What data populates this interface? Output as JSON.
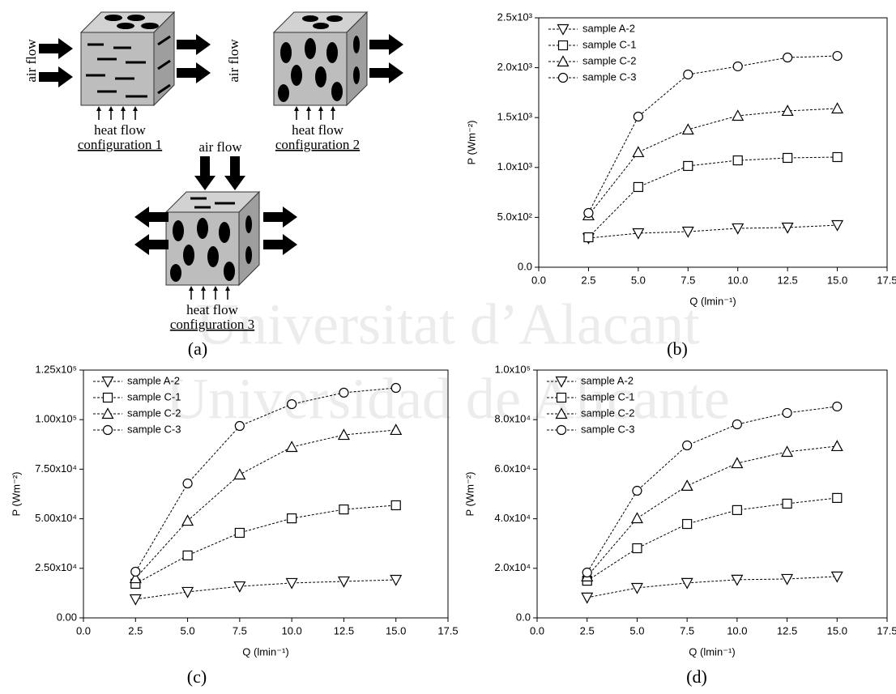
{
  "watermark": [
    "Universitat d’Alacant",
    "Universidad de Alicante"
  ],
  "diagram": {
    "caption": "(a)",
    "panels": [
      {
        "air_flow": "air flow",
        "heat_flow": "heat flow",
        "configuration": "configuration 1"
      },
      {
        "air_flow": "air flow",
        "heat_flow": "heat flow",
        "configuration": "configuration 2"
      },
      {
        "air_flow": "air flow",
        "heat_flow": "heat flow",
        "configuration": "configuration 3"
      }
    ]
  },
  "chart_data": [
    {
      "type": "line",
      "caption": "(b)",
      "x_label": "Q (lmin⁻¹)",
      "y_label": "P (Wm⁻²)",
      "x": [
        2.5,
        5,
        7.5,
        10,
        12.5,
        15
      ],
      "xlim": [
        0,
        17.5
      ],
      "xticks": [
        {
          "value": 0,
          "label": "0.0"
        },
        2.5,
        {
          "value": 5,
          "label": "5.0"
        },
        7.5,
        {
          "value": 10,
          "label": "10.0"
        },
        12.5,
        {
          "value": 15,
          "label": "15.0"
        },
        17.5
      ],
      "ylim": [
        0,
        2500
      ],
      "yticks": [
        {
          "value": 0,
          "label": "0.0"
        },
        {
          "value": 500,
          "label": "5.0x10²"
        },
        {
          "value": 1000,
          "label": "1.0x10³"
        },
        {
          "value": 1500,
          "label": "1.5x10³"
        },
        {
          "value": 2000,
          "label": "2.0x10³"
        },
        {
          "value": 2500,
          "label": "2.5x10³"
        }
      ],
      "legend": "upper-left",
      "series": [
        {
          "name": "sample A-2",
          "marker": "down-triangle",
          "color": "#000000",
          "values": [
            292,
            341,
            357,
            390,
            398,
            422
          ]
        },
        {
          "name": "sample C-1",
          "marker": "square",
          "color": "#000000",
          "values": [
            300,
            804,
            1015,
            1071,
            1096,
            1104
          ]
        },
        {
          "name": "sample C-2",
          "marker": "triangle",
          "color": "#000000",
          "values": [
            520,
            1153,
            1380,
            1518,
            1567,
            1591
          ]
        },
        {
          "name": "sample C-3",
          "marker": "circle",
          "color": "#000000",
          "values": [
            544,
            1510,
            1932,
            2013,
            2102,
            2118
          ]
        }
      ]
    },
    {
      "type": "line",
      "caption": "(c)",
      "x_label": "Q (lmin⁻¹)",
      "y_label": "P (Wm⁻²)",
      "x": [
        2.5,
        5,
        7.5,
        10,
        12.5,
        15
      ],
      "xlim": [
        0,
        17.5
      ],
      "xticks": [
        {
          "value": 0,
          "label": "0.0"
        },
        2.5,
        {
          "value": 5,
          "label": "5.0"
        },
        7.5,
        {
          "value": 10,
          "label": "10.0"
        },
        12.5,
        {
          "value": 15,
          "label": "15.0"
        },
        17.5
      ],
      "ylim": [
        0,
        125000
      ],
      "yticks": [
        {
          "value": 0,
          "label": "0.00"
        },
        {
          "value": 25000,
          "label": "2.50x10⁴"
        },
        {
          "value": 50000,
          "label": "5.00x10⁴"
        },
        {
          "value": 75000,
          "label": "7.50x10⁴"
        },
        {
          "value": 100000,
          "label": "1.00x10⁵"
        },
        {
          "value": 125000,
          "label": "1.25x10⁵"
        }
      ],
      "legend": "upper-left",
      "series": [
        {
          "name": "sample A-2",
          "marker": "down-triangle",
          "color": "#000000",
          "values": [
            9400,
            13100,
            15900,
            17600,
            18400,
            19200
          ]
        },
        {
          "name": "sample C-1",
          "marker": "square",
          "color": "#000000",
          "values": [
            17200,
            31500,
            42900,
            50200,
            54700,
            56800
          ]
        },
        {
          "name": "sample C-2",
          "marker": "triangle",
          "color": "#000000",
          "values": [
            20000,
            49000,
            72300,
            86200,
            92300,
            94800
          ]
        },
        {
          "name": "sample C-3",
          "marker": "circle",
          "color": "#000000",
          "values": [
            23300,
            67800,
            96800,
            107800,
            113600,
            116000
          ]
        }
      ]
    },
    {
      "type": "line",
      "caption": "(d)",
      "x_label": "Q (lmin⁻¹)",
      "y_label": "P (Wm⁻²)",
      "x": [
        2.5,
        5,
        7.5,
        10,
        12.5,
        15
      ],
      "xlim": [
        0,
        17.5
      ],
      "xticks": [
        {
          "value": 0,
          "label": "0.0"
        },
        2.5,
        {
          "value": 5,
          "label": "5.0"
        },
        7.5,
        {
          "value": 10,
          "label": "10.0"
        },
        12.5,
        {
          "value": 15,
          "label": "15.0"
        },
        17.5
      ],
      "ylim": [
        0,
        100000
      ],
      "yticks": [
        {
          "value": 0,
          "label": "0.0"
        },
        {
          "value": 20000,
          "label": "2.0x10⁴"
        },
        {
          "value": 40000,
          "label": "4.0x10⁴"
        },
        {
          "value": 60000,
          "label": "6.0x10⁴"
        },
        {
          "value": 80000,
          "label": "8.0x10⁴"
        },
        {
          "value": 100000,
          "label": "1.0x10⁵"
        }
      ],
      "legend": "upper-left",
      "series": [
        {
          "name": "sample A-2",
          "marker": "down-triangle",
          "color": "#000000",
          "values": [
            8200,
            12100,
            14100,
            15400,
            15700,
            16700
          ]
        },
        {
          "name": "sample C-1",
          "marker": "square",
          "color": "#000000",
          "values": [
            15000,
            28100,
            37900,
            43500,
            46100,
            48400
          ]
        },
        {
          "name": "sample C-2",
          "marker": "triangle",
          "color": "#000000",
          "values": [
            16700,
            40200,
            53300,
            62400,
            67000,
            69300
          ]
        },
        {
          "name": "sample C-3",
          "marker": "circle",
          "color": "#000000",
          "values": [
            18300,
            51300,
            69600,
            78100,
            82700,
            85300
          ]
        }
      ]
    }
  ]
}
